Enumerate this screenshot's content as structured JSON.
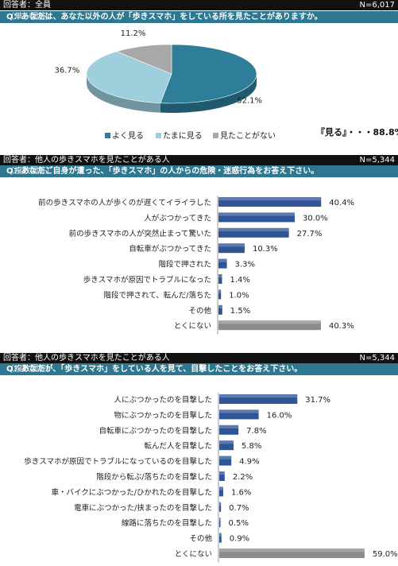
{
  "sections": [
    {
      "respondents": "回答者：全員",
      "n": "N=6,017",
      "question_main": "Q：あなたは、あなた以外の人が「歩きスマホ」をしている所を見たことがありますか。",
      "question_note": "（単一回答）"
    },
    {
      "respondents": "回答者：他人の歩きスマホを見たことがある人",
      "n": "N=5,344",
      "question_main": "Q：あなたご自身が遭った、「歩きスマホ」の人からの危険・迷惑行為をお答え下さい。",
      "question_note": "（複数回答）"
    },
    {
      "respondents": "回答者：他人の歩きスマホを見たことがある人",
      "n": "N=5,344",
      "question_main": "Q：あなたが、「歩きスマホ」をしている人を見て、目撃したことをお答え下さい。",
      "question_note": "（複数回答）"
    }
  ],
  "pie_total": "『見る』・・・88.8%",
  "colors": {
    "often": "#2e7d99",
    "sometimes": "#9dcfdd",
    "never": "#a8a8a8",
    "bar": "#2f5597",
    "bar_last": "#8c8c8c",
    "question_bg": "#2d7791"
  },
  "chart_data": [
    {
      "type": "pie",
      "slices": [
        {
          "label": "よく見る",
          "value": 52.1,
          "display": "52.1%"
        },
        {
          "label": "たまに見る",
          "value": 36.7,
          "display": "36.7%"
        },
        {
          "label": "見たことがない",
          "value": 11.2,
          "display": "11.2%"
        }
      ]
    },
    {
      "type": "bar",
      "orientation": "horizontal",
      "categories": [
        "前の歩きスマホの人が歩くのが遅くてイライラした",
        "人がぶつかってきた",
        "前の歩きスマホの人が突然止まって驚いた",
        "自転車がぶつかってきた",
        "階段で押された",
        "歩きスマホが原因でトラブルになった",
        "階段で押されて、転んだ/落ちた",
        "その他",
        "とくにない"
      ],
      "values": [
        40.4,
        30.0,
        27.7,
        10.3,
        3.3,
        1.4,
        1.0,
        1.5,
        40.3
      ],
      "labels": [
        "40.4%",
        "30.0%",
        "27.7%",
        "10.3%",
        "3.3%",
        "1.4%",
        "1.0%",
        "1.5%",
        "40.3%"
      ]
    },
    {
      "type": "bar",
      "orientation": "horizontal",
      "categories": [
        "人にぶつかったのを目撃した",
        "物にぶつかったのを目撃した",
        "自転車にぶつかったのを目撃した",
        "転んだ人を目撃した",
        "歩きスマホが原因でトラブルになっているのを目撃した",
        "階段から転ぶ/落ちたのを目撃した",
        "車・バイクにぶつかった/ひかれたのを目撃した",
        "電車にぶつかった/挟まったのを目撃した",
        "線路に落ちたのを目撃した",
        "その他",
        "とくにない"
      ],
      "values": [
        31.7,
        16.0,
        7.8,
        5.8,
        4.9,
        2.2,
        1.6,
        0.7,
        0.5,
        0.9,
        59.0
      ],
      "labels": [
        "31.7%",
        "16.0%",
        "7.8%",
        "5.8%",
        "4.9%",
        "2.2%",
        "1.6%",
        "0.7%",
        "0.5%",
        "0.9%",
        "59.0%"
      ]
    }
  ]
}
